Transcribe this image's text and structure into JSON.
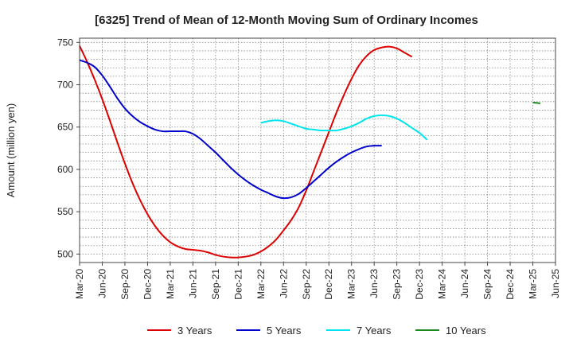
{
  "chart_data": {
    "type": "line",
    "title": "[6325]  Trend of Mean of 12-Month Moving Sum of Ordinary Incomes",
    "xlabel": "",
    "ylabel": "Amount (million yen)",
    "ylim": [
      490,
      755
    ],
    "yticks": [
      500,
      550,
      600,
      650,
      700,
      750
    ],
    "ytick_labels": [
      "500",
      "550",
      "600",
      "650",
      "700",
      "750"
    ],
    "x_start": "Mar-20",
    "x_tick_labels": [
      "Mar-20",
      "Jun-20",
      "Sep-20",
      "Dec-20",
      "Mar-21",
      "Jun-21",
      "Sep-21",
      "Dec-21",
      "Mar-22",
      "Jun-22",
      "Sep-22",
      "Dec-22",
      "Mar-23",
      "Jun-23",
      "Sep-23",
      "Dec-23",
      "Mar-24",
      "Jun-24",
      "Sep-24",
      "Dec-24",
      "Mar-25",
      "Jun-25"
    ],
    "x_tick_step_months": 3,
    "grid": true,
    "legend_position": "bottom",
    "series": [
      {
        "name": "3 Years",
        "color": "#dd0000",
        "start_index": 0,
        "values": [
          746,
          727,
          706,
          683,
          658,
          632,
          607,
          584,
          564,
          547,
          533,
          522,
          514,
          509,
          506,
          505,
          504,
          502,
          499,
          497,
          496,
          496,
          497,
          499,
          503,
          509,
          517,
          528,
          540,
          555,
          575,
          598,
          621,
          644,
          667,
          688,
          707,
          723,
          734,
          741,
          744,
          745,
          743,
          738,
          733
        ]
      },
      {
        "name": "5 Years",
        "color": "#0000cc",
        "start_index": 0,
        "values": [
          729,
          726,
          721,
          711,
          698,
          684,
          672,
          663,
          656,
          651,
          647,
          645,
          645,
          645,
          645,
          642,
          636,
          628,
          620,
          611,
          602,
          594,
          587,
          581,
          576,
          572,
          568,
          566,
          567,
          571,
          578,
          586,
          594,
          602,
          609,
          615,
          620,
          624,
          627,
          628,
          628
        ]
      },
      {
        "name": "7 Years",
        "color": "#00e5ee",
        "start_index": 24,
        "values": [
          655,
          657,
          658,
          657,
          654,
          651,
          648,
          647,
          646,
          646,
          646,
          648,
          651,
          655,
          660,
          663,
          664,
          663,
          660,
          655,
          649,
          643,
          635
        ]
      },
      {
        "name": "10 Years",
        "color": "#228822",
        "start_index": 60,
        "values": [
          679,
          678
        ]
      }
    ]
  }
}
